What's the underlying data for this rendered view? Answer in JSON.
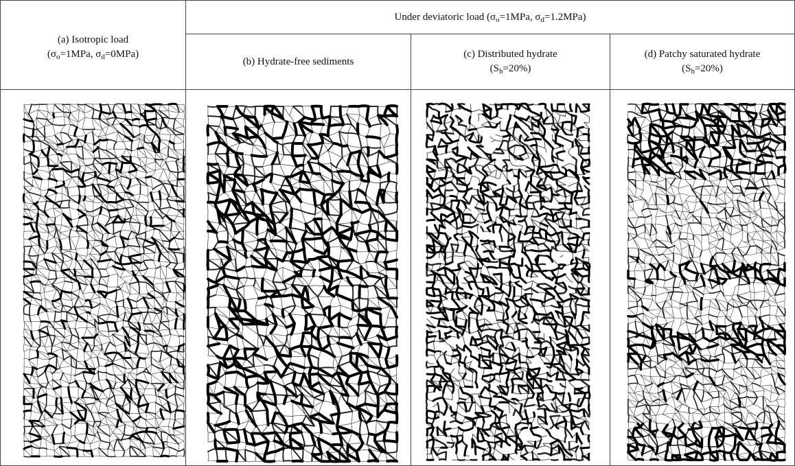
{
  "header": {
    "group": [
      "Under deviatoric load (σ",
      "o",
      "=1MPa, σ",
      "d",
      "=1.2MPa)"
    ]
  },
  "columns": [
    {
      "label": "(a)  Isotropic load",
      "conditions": [
        "(σ",
        "o",
        "=1MPa, σ",
        "d",
        "=0MPa)"
      ]
    },
    {
      "label": "(b) Hydrate-free sediments"
    },
    {
      "label": "(c) Distributed hydrate",
      "conditions": [
        "(S",
        "h",
        "=20%)"
      ]
    },
    {
      "label": "(d) Patchy saturated hydrate",
      "conditions": [
        "(S",
        "h",
        "=20%)"
      ]
    }
  ]
}
